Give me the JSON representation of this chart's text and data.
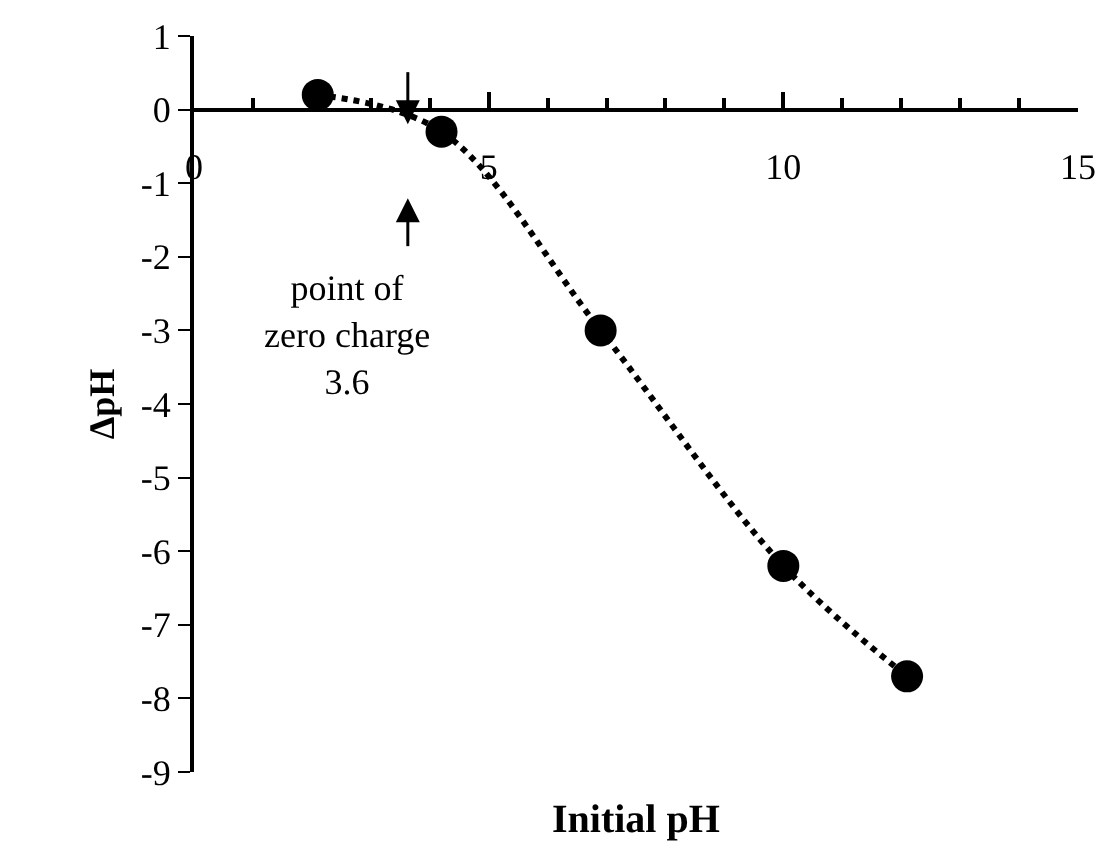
{
  "chart_data": {
    "type": "line",
    "xlabel": "Initial pH",
    "ylabel": "ΔpH",
    "x": [
      2.1,
      4.2,
      6.9,
      10,
      12.1
    ],
    "series": [
      {
        "color": "#000000",
        "values": [
          0.2,
          -0.3,
          -3.0,
          -6.2,
          -7.7
        ]
      }
    ],
    "xlim": [
      0,
      15
    ],
    "xticks": [
      0,
      5,
      10,
      15
    ],
    "ylim": [
      -9,
      1
    ],
    "yticks": [
      -9,
      -8,
      -7,
      -6,
      -5,
      -4,
      -3,
      -2,
      -1,
      0,
      1
    ],
    "grid": false,
    "marker": "circle",
    "line_style": "dotted",
    "annotations": [
      "point of\nzero charge\n3.6"
    ]
  }
}
